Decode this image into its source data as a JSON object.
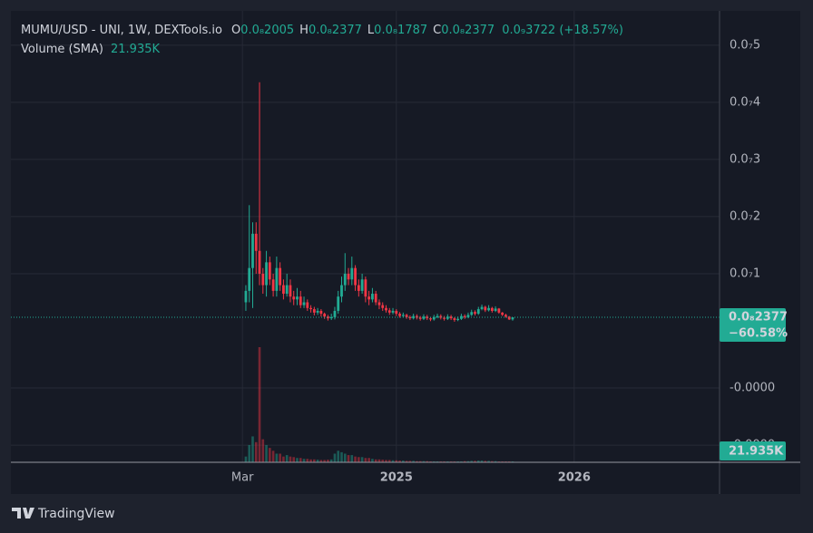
{
  "chart_data": {
    "type": "candlestick",
    "title": "MUMU/USD - UNI, 1W, DEXTools.io",
    "ohlc_legend": [
      {
        "key": "O",
        "value": "0.0₈2005"
      },
      {
        "key": "H",
        "value": "0.0₈2377"
      },
      {
        "key": "L",
        "value": "0.0₈1787"
      },
      {
        "key": "C",
        "value": "0.0₈2377"
      }
    ],
    "change": "0.0₉3722 (+18.57%)",
    "volume_name": "Volume (SMA)",
    "volume_sma": {
      "value": 21935,
      "label": "21.935K"
    },
    "last_price": "0.0₈2377",
    "last_change": "−60.58%",
    "brand": "TradingView",
    "up_color": "#22ab94",
    "down_color": "#f23645",
    "open": [
      5e-09,
      7e-09,
      1.1e-08,
      1.7e-08,
      1.4e-08,
      1e-08,
      8e-09,
      1.2e-08,
      9e-09,
      7e-09,
      1.1e-08,
      8e-09,
      6.5e-09,
      8e-09,
      6e-09,
      5.5e-09,
      6e-09,
      4.5e-09,
      5e-09,
      4e-09,
      3.8e-09,
      3.2e-09,
      3.5e-09,
      3e-09,
      2.5e-09,
      2.2e-09,
      2.4e-09,
      3.5e-09,
      6e-09,
      8e-09,
      1e-08,
      9e-09,
      1.1e-08,
      8e-09,
      7e-09,
      9e-09,
      6e-09,
      5.5e-09,
      6.5e-09,
      5e-09,
      4.5e-09,
      4e-09,
      3.6e-09,
      3.2e-09,
      3.5e-09,
      3e-09,
      2.6e-09,
      2.8e-09,
      2.4e-09,
      2.2e-09,
      2.6e-09,
      2.3e-09,
      2.1e-09,
      2.5e-09,
      2.2e-09,
      2e-09,
      2.4e-09,
      2.6e-09,
      2.3e-09,
      2.1e-09,
      2.5e-09,
      2.2e-09,
      1.9e-09,
      2.1e-09,
      2.6e-09,
      2.4e-09,
      2.8e-09,
      3.3e-09,
      3e-09,
      3.8e-09,
      4.2e-09,
      3.6e-09,
      4e-09,
      3.5e-09,
      3.9e-09,
      3.2e-09,
      2.8e-09,
      2.5e-09,
      2.005e-09
    ],
    "high": [
      8e-09,
      2.2e-08,
      1.9e-08,
      1.9e-08,
      4.35e-08,
      1.1e-08,
      1.4e-08,
      1.3e-08,
      1e-08,
      1.3e-08,
      1.2e-08,
      9e-09,
      1e-08,
      9e-09,
      7e-09,
      7.5e-09,
      7e-09,
      6e-09,
      5.5e-09,
      4.5e-09,
      4.2e-09,
      4e-09,
      3.8e-09,
      3.2e-09,
      2.8e-09,
      3e-09,
      4.2e-09,
      7e-09,
      9.5e-09,
      1.36e-08,
      1.1e-08,
      1.3e-08,
      1.15e-08,
      9e-09,
      1e-08,
      9.5e-09,
      7e-09,
      7.5e-09,
      7e-09,
      5.5e-09,
      5e-09,
      4.5e-09,
      4e-09,
      4e-09,
      3.8e-09,
      3.3e-09,
      3.2e-09,
      3e-09,
      2.7e-09,
      3e-09,
      2.9e-09,
      2.6e-09,
      2.9e-09,
      2.8e-09,
      2.4e-09,
      2.8e-09,
      3e-09,
      2.9e-09,
      2.6e-09,
      2.9e-09,
      2.8e-09,
      2.4e-09,
      2.5e-09,
      3e-09,
      2.9e-09,
      3.2e-09,
      3.7e-09,
      3.6e-09,
      4.2e-09,
      4.6e-09,
      4.4e-09,
      4.5e-09,
      4.2e-09,
      4.3e-09,
      4e-09,
      3.3e-09,
      3e-09,
      2.6e-09,
      2.377e-09
    ],
    "low": [
      3.5e-09,
      5e-09,
      4e-09,
      1e-08,
      8e-09,
      6.5e-09,
      6e-09,
      8e-09,
      6e-09,
      6e-09,
      7e-09,
      5.5e-09,
      6e-09,
      5e-09,
      4.5e-09,
      4.5e-09,
      4e-09,
      4e-09,
      3.5e-09,
      3.2e-09,
      2.7e-09,
      2.8e-09,
      2.5e-09,
      2.1e-09,
      1.8e-09,
      1.9e-09,
      2e-09,
      3e-09,
      5e-09,
      7e-09,
      8e-09,
      8e-09,
      7e-09,
      6e-09,
      6.5e-09,
      5e-09,
      4.5e-09,
      5e-09,
      4.5e-09,
      3.8e-09,
      3.5e-09,
      3.2e-09,
      2.8e-09,
      2.9e-09,
      2.6e-09,
      2.3e-09,
      2.3e-09,
      2.1e-09,
      1.9e-09,
      2e-09,
      2e-09,
      1.8e-09,
      1.9e-09,
      1.9e-09,
      1.7e-09,
      1.8e-09,
      2.2e-09,
      2e-09,
      1.8e-09,
      1.9e-09,
      1.9e-09,
      1.6e-09,
      1.7e-09,
      1.9e-09,
      2.1e-09,
      2.2e-09,
      2.6e-09,
      2.7e-09,
      2.8e-09,
      3.6e-09,
      3.3e-09,
      3.4e-09,
      3.2e-09,
      3.3e-09,
      3e-09,
      2.6e-09,
      2.3e-09,
      1.9e-09,
      1.787e-09
    ],
    "close": [
      7e-09,
      1.1e-08,
      1.7e-08,
      1.4e-08,
      1e-08,
      8e-09,
      1.2e-08,
      9e-09,
      7e-09,
      1.1e-08,
      8e-09,
      6.5e-09,
      8e-09,
      6e-09,
      5.5e-09,
      6e-09,
      4.5e-09,
      5e-09,
      4e-09,
      3.8e-09,
      3.2e-09,
      3.5e-09,
      3e-09,
      2.5e-09,
      2.2e-09,
      2.4e-09,
      3.5e-09,
      6e-09,
      8e-09,
      1e-08,
      9e-09,
      1.1e-08,
      8e-09,
      7e-09,
      9e-09,
      6e-09,
      5.5e-09,
      6.5e-09,
      5e-09,
      4.5e-09,
      4e-09,
      3.6e-09,
      3.2e-09,
      3.5e-09,
      3e-09,
      2.6e-09,
      2.8e-09,
      2.4e-09,
      2.2e-09,
      2.6e-09,
      2.3e-09,
      2.1e-09,
      2.5e-09,
      2.2e-09,
      2e-09,
      2.4e-09,
      2.6e-09,
      2.3e-09,
      2.1e-09,
      2.5e-09,
      2.2e-09,
      1.9e-09,
      2.1e-09,
      2.6e-09,
      2.4e-09,
      2.8e-09,
      3.3e-09,
      3e-09,
      3.8e-09,
      4.2e-09,
      3.6e-09,
      4e-09,
      3.5e-09,
      3.9e-09,
      3.2e-09,
      2.8e-09,
      2.5e-09,
      2.005e-09,
      2.377e-09
    ],
    "volume": [
      20000,
      60000,
      90000,
      70000,
      400000,
      80000,
      60000,
      50000,
      40000,
      30000,
      30000,
      20000,
      25000,
      20000,
      18000,
      15000,
      15000,
      12000,
      12000,
      10000,
      10000,
      9000,
      8000,
      8000,
      9000,
      10000,
      30000,
      40000,
      35000,
      30000,
      25000,
      25000,
      20000,
      18000,
      18000,
      15000,
      15000,
      12000,
      10000,
      10000,
      9000,
      8000,
      8000,
      7000,
      7000,
      6000,
      6000,
      5000,
      5000,
      5000,
      4000,
      4000,
      4000,
      4000,
      3000,
      3000,
      3000,
      3000,
      3000,
      3000,
      3000,
      3000,
      3000,
      3000,
      4000,
      4000,
      5000,
      5000,
      6000,
      6000,
      5000,
      5000,
      4000,
      4000,
      3000,
      3000,
      3000,
      3000,
      3000
    ],
    "xlim": [
      -68.7,
      138.5
    ],
    "xticks": [
      {
        "value": -1,
        "label": "Mar"
      },
      {
        "value": 44,
        "label": "2025"
      },
      {
        "value": 96,
        "label": "2026"
      }
    ],
    "ylim": [
      -2.3e-08,
      5.6e-08
    ],
    "yticks": [
      {
        "value": 5e-08,
        "label": "0.0₇5"
      },
      {
        "value": 4e-08,
        "label": "0.0₇4"
      },
      {
        "value": 3e-08,
        "label": "0.0₇3"
      },
      {
        "value": 2e-08,
        "label": "0.0₇2"
      },
      {
        "value": 1e-08,
        "label": "0.0₇1"
      },
      {
        "value": -1e-08,
        "label": "-0.0000"
      },
      {
        "value": -2e-08,
        "label": "-0.0000"
      }
    ],
    "grid": true
  }
}
